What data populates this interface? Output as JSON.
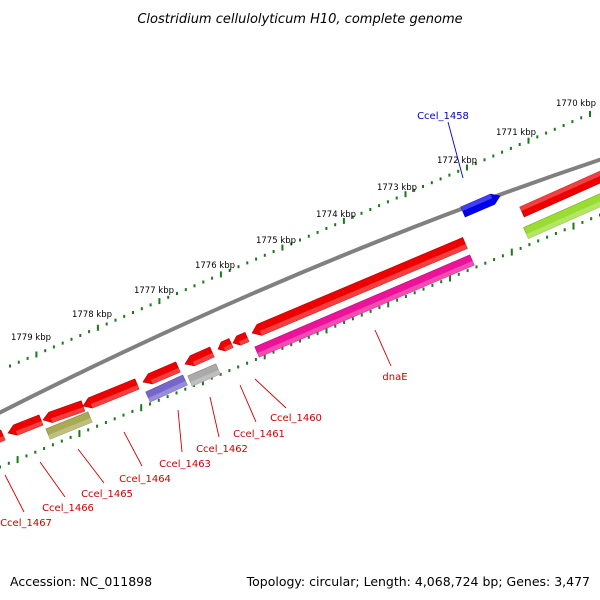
{
  "title": "Clostridium cellulolyticum H10, complete genome",
  "footer": {
    "accession": "Accession: NC_011898",
    "summary": "Topology: circular; Length: 4,068,724 bp; Genes: 3,477"
  },
  "colors": {
    "backbone": "#808080",
    "scale_dots": "#1a7a1a",
    "forward_label": "#0000cc",
    "reverse_label": "#cc0000"
  },
  "scale": {
    "ticks_kbp": [
      1770,
      1771,
      1772,
      1773,
      1774,
      1775,
      1776,
      1777,
      1778,
      1779
    ],
    "tick_labels": [
      "1770 kbp",
      "1771 kbp",
      "1772 kbp",
      "1773 kbp",
      "1774 kbp",
      "1775 kbp",
      "1776 kbp",
      "1777 kbp",
      "1778 kbp",
      "1779 kbp"
    ]
  },
  "genes": [
    {
      "locus": "Ccel_1458",
      "strand": "forward",
      "color": "#0000ee",
      "label_color": "#0000cc"
    },
    {
      "locus": "Ccel_1460",
      "strand": "reverse",
      "color": "#ee0000",
      "label_color": "#cc0000"
    },
    {
      "locus": "Ccel_1461",
      "strand": "reverse",
      "color": "#ee0000",
      "label_color": "#cc0000"
    },
    {
      "locus": "Ccel_1462",
      "strand": "reverse",
      "color": "#aaaaaa",
      "label_color": "#cc0000"
    },
    {
      "locus": "Ccel_1463",
      "strand": "reverse",
      "color": "#7766cc",
      "label_color": "#cc0000"
    },
    {
      "locus": "Ccel_1464",
      "strand": "reverse",
      "color": "#ee0000",
      "label_color": "#cc0000"
    },
    {
      "locus": "Ccel_1465",
      "strand": "reverse",
      "color": "#aaaa55",
      "label_color": "#cc0000"
    },
    {
      "locus": "Ccel_1466",
      "strand": "reverse",
      "color": "#ee0000",
      "label_color": "#cc0000"
    },
    {
      "locus": "Ccel_1467",
      "strand": "reverse",
      "color": "#ee0000",
      "label_color": "#cc0000"
    },
    {
      "locus": "dnaE",
      "strand": "reverse",
      "color": "#ee1199",
      "label_color": "#cc0000"
    }
  ],
  "unlabeled_features": [
    {
      "kind": "red-arrow",
      "color": "#ee0000"
    },
    {
      "kind": "green-bar",
      "color": "#99dd33"
    }
  ]
}
